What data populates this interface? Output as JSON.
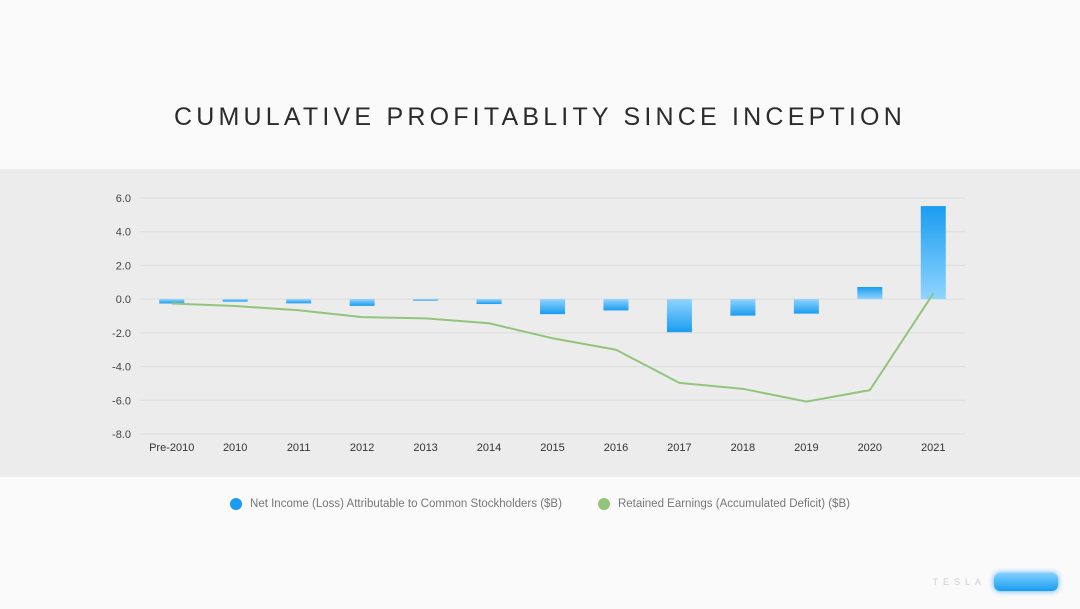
{
  "title": "CUMULATIVE PROFITABLITY SINCE INCEPTION",
  "logo": {
    "word": "TESLA"
  },
  "colors": {
    "bar": "#1a9cf0",
    "bar_light": "#8fd4ff",
    "line": "#93c47d",
    "band": "#ececec"
  },
  "chart_data": {
    "type": "bar",
    "categories": [
      "Pre-2010",
      "2010",
      "2011",
      "2012",
      "2013",
      "2014",
      "2015",
      "2016",
      "2017",
      "2018",
      "2019",
      "2020",
      "2021"
    ],
    "series": [
      {
        "name": "Net Income (Loss) Attributable to Common Stockholders ($B)",
        "type": "bar",
        "values": [
          -0.26,
          -0.15,
          -0.25,
          -0.4,
          -0.07,
          -0.29,
          -0.89,
          -0.67,
          -1.96,
          -0.98,
          -0.86,
          0.72,
          5.52
        ]
      },
      {
        "name": "Retained Earnings (Accumulated Deficit) ($B)",
        "type": "line",
        "values": [
          -0.26,
          -0.41,
          -0.66,
          -1.07,
          -1.14,
          -1.43,
          -2.32,
          -3.0,
          -4.97,
          -5.32,
          -6.08,
          -5.4,
          0.33
        ]
      }
    ],
    "ylim": [
      -8,
      6
    ],
    "yticks": [
      "6.0",
      "4.0",
      "2.0",
      "0.0",
      "-2.0",
      "-4.0",
      "-6.0",
      "-8.0"
    ],
    "ytick_values": [
      6,
      4,
      2,
      0,
      -2,
      -4,
      -6,
      -8
    ],
    "grid": true,
    "legend_position": "bottom"
  }
}
